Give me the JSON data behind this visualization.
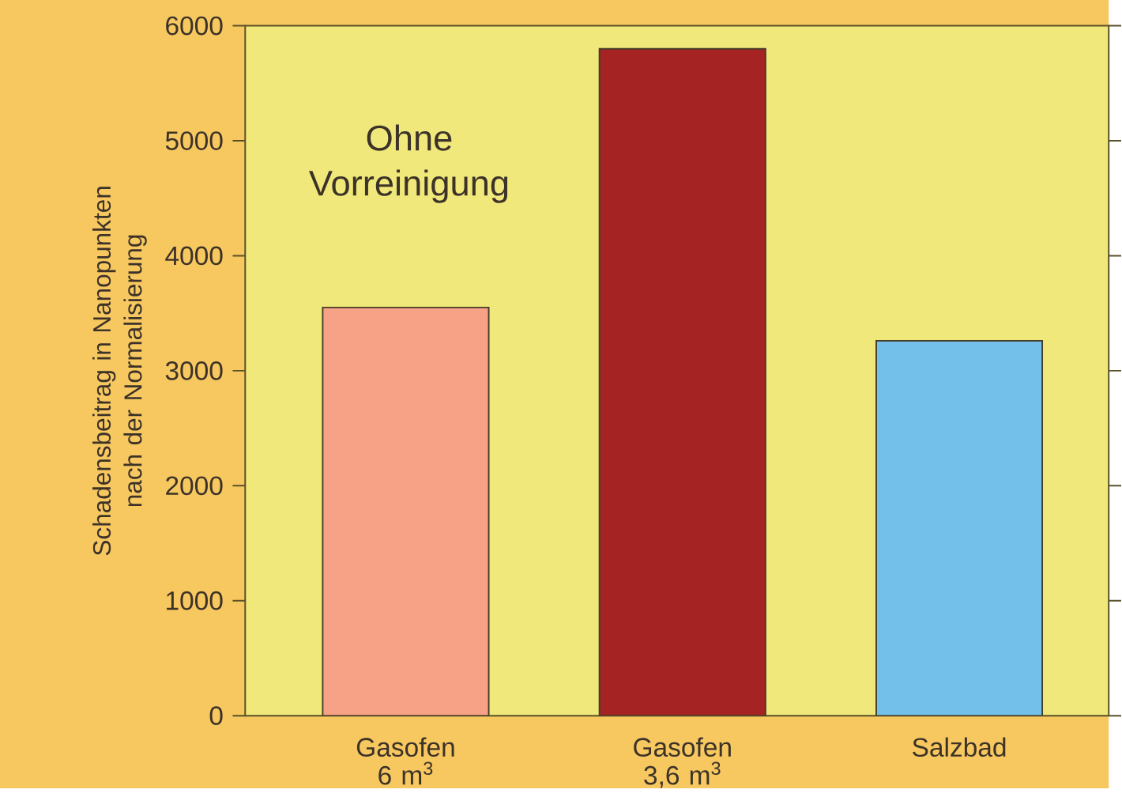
{
  "chart_data": {
    "type": "bar",
    "ylabel": "Schadensbeitrag  in Nanopunkten nach der Normalisierung",
    "categories": [
      "Gasofen 6 m$^{3}$",
      "Gasofen 3,6 m$^{3}$",
      "Salzbad"
    ],
    "values": [
      3550,
      5800,
      3260
    ],
    "colors": [
      "#f7a287",
      "#a52323",
      "#73c1ea"
    ],
    "ylim": [
      0,
      6000
    ],
    "yticks": [
      0,
      1000,
      2000,
      3000,
      4000,
      5000,
      6000
    ],
    "annotations": [
      "Ohne Vorreinigung"
    ]
  }
}
